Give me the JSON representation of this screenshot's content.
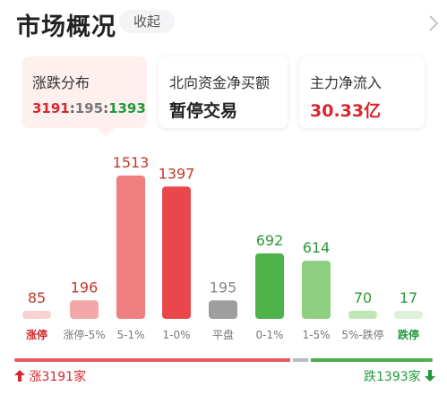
{
  "header": {
    "title": "市场概况",
    "collapse_label": "收起",
    "chevron_icon": "chevron-right-icon"
  },
  "cards": [
    {
      "label": "涨跌分布",
      "ratio_up": "3191",
      "ratio_flat": "195",
      "ratio_down": "1393",
      "active": true
    },
    {
      "label": "北向资金净买额",
      "value": "暂停交易",
      "value_color": "#222222"
    },
    {
      "label": "主力净流入",
      "value": "30.33亿",
      "value_color": "#d7262e"
    }
  ],
  "separators": {
    "a": ":",
    "b": ":"
  },
  "chart_data": {
    "type": "bar",
    "categories": [
      "涨停",
      "涨停-5%",
      "5-1%",
      "1-0%",
      "平盘",
      "0-1%",
      "1-5%",
      "5%-跌停",
      "跌停"
    ],
    "values": [
      85,
      196,
      1513,
      1397,
      195,
      692,
      614,
      70,
      17
    ],
    "value_labels": [
      "85",
      "196",
      "1513",
      "1397",
      "195",
      "692",
      "614",
      "70",
      "17"
    ],
    "bar_colors": [
      "#f9d2d2",
      "#f3a7a9",
      "#ef7f80",
      "#e9474c",
      "#9e9e9e",
      "#4db34a",
      "#8ccf7e",
      "#bfe6b6",
      "#def2d9"
    ],
    "label_colors": [
      "#c0392b",
      "#c0392b",
      "#c0392b",
      "#c0392b",
      "#888888",
      "#2e9a3a",
      "#2e9a3a",
      "#2e9a3a",
      "#2e9a3a"
    ],
    "category_colors": [
      "#d7262e",
      "#777777",
      "#777777",
      "#777777",
      "#777777",
      "#777777",
      "#777777",
      "#777777",
      "#1f9a3b"
    ],
    "category_bold": [
      true,
      false,
      false,
      false,
      false,
      false,
      false,
      false,
      true
    ]
  },
  "footer": {
    "up_total": "涨3191家",
    "down_total": "跌1393家",
    "up_arrow_icon": "arrow-up-icon",
    "down_arrow_icon": "arrow-down-icon"
  }
}
